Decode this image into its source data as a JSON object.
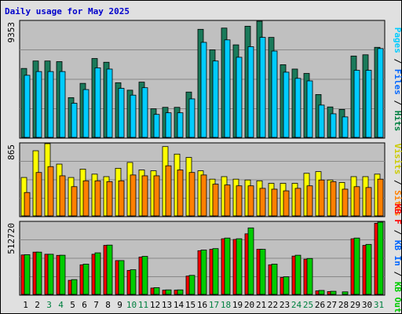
{
  "chart_data": {
    "title": "Daily usage for May 2025",
    "days": [
      "1",
      "2",
      "3",
      "4",
      "5",
      "6",
      "7",
      "8",
      "9",
      "10",
      "11",
      "12",
      "13",
      "14",
      "15",
      "16",
      "17",
      "18",
      "19",
      "20",
      "21",
      "22",
      "23",
      "24",
      "25",
      "26",
      "27",
      "28",
      "29",
      "30",
      "31"
    ],
    "weekend_days": [
      "3",
      "4",
      "10",
      "11",
      "17",
      "18",
      "24",
      "25",
      "31"
    ],
    "colors": {
      "background": "#e0e0e0",
      "plot_background": "#c0c0c0",
      "gridline": "#888888",
      "pages": "#00ccff",
      "files": "#0066ff",
      "hits": "#008040",
      "visits": "#ffff00",
      "sites": "#ff8000",
      "kb_in": "#00cc00",
      "kb_out": "#ff0000",
      "kb_f": "#ff0000",
      "weekday_label": "#000000",
      "weekend_label": "#008040",
      "title": "#0000cc"
    },
    "panels": [
      {
        "type": "bar",
        "max_label": "9353",
        "ylim": [
          0,
          9353
        ],
        "grid": true,
        "legend": [
          {
            "text": "Pages",
            "color": "#00ccff"
          },
          {
            "text": " / ",
            "color": "#000000"
          },
          {
            "text": "Files",
            "color": "#0066ff"
          },
          {
            "text": " / ",
            "color": "#000000"
          },
          {
            "text": "Hits",
            "color": "#008040"
          }
        ],
        "series": [
          {
            "key": "hits",
            "color": "#1a7a5a",
            "values": [
              5550,
              6150,
              6150,
              6100,
              3200,
              4350,
              6350,
              6050,
              4400,
              3800,
              4450,
              2300,
              2420,
              2420,
              3650,
              8700,
              7050,
              8800,
              7450,
              8950,
              9353,
              8050,
              5850,
              5500,
              5150,
              3450,
              2450,
              2250,
              6550,
              6650,
              7250
            ]
          },
          {
            "key": "pages",
            "color": "#00ccff",
            "values": [
              5000,
              5300,
              5300,
              5300,
              2750,
              3850,
              5600,
              5500,
              3950,
              3400,
              4000,
              1850,
              1980,
              1980,
              3100,
              7650,
              6150,
              7850,
              6450,
              7300,
              8050,
              6950,
              5250,
              4750,
              4550,
              2600,
              1900,
              1650,
              5400,
              5400,
              7150
            ]
          }
        ]
      },
      {
        "type": "bar",
        "max_label": "865",
        "ylim": [
          0,
          865
        ],
        "grid": true,
        "legend": [
          {
            "text": "Visits",
            "color": "#cccc00"
          },
          {
            "text": " / ",
            "color": "#000000"
          },
          {
            "text": "Sites",
            "color": "#ff8000"
          }
        ],
        "series": [
          {
            "key": "visits",
            "color": "#ffff00",
            "values": [
              460,
              780,
              865,
              620,
              460,
              560,
              500,
              470,
              570,
              640,
              550,
              540,
              830,
              740,
              700,
              540,
              440,
              470,
              440,
              430,
              420,
              390,
              390,
              390,
              510,
              530,
              430,
              400,
              470,
              470,
              500
            ]
          },
          {
            "key": "sites",
            "color": "#ff8000",
            "values": [
              280,
              520,
              590,
              480,
              350,
              420,
              420,
              410,
              420,
              490,
              480,
              480,
              600,
              550,
              520,
              490,
              380,
              370,
              360,
              360,
              330,
              320,
              300,
              330,
              360,
              430,
              410,
              320,
              350,
              340,
              440
            ]
          }
        ]
      },
      {
        "type": "bar",
        "max_label": "512720",
        "ylim": [
          0,
          512720
        ],
        "grid": true,
        "legend": [
          {
            "text": "KB F",
            "color": "#ff0000"
          },
          {
            "text": " / ",
            "color": "#000000"
          },
          {
            "text": "KB In",
            "color": "#0066ff"
          },
          {
            "text": " / ",
            "color": "#000000"
          },
          {
            "text": "KB Out",
            "color": "#00cc00"
          }
        ],
        "series": [
          {
            "key": "kb_out",
            "color": "#ff0000",
            "values": [
              280000,
              300000,
              285000,
              277000,
              100000,
              210000,
              285000,
              348000,
              240000,
              170000,
              265000,
              45000,
              30000,
              30000,
              130000,
              310000,
              320000,
              395000,
              390000,
              430000,
              320000,
              210000,
              120000,
              272000,
              250000,
              25000,
              20000,
              0,
              395000,
              348000,
              505000
            ]
          },
          {
            "key": "kb_in",
            "color": "#00cc00",
            "values": [
              282000,
              300000,
              285000,
              278000,
              105000,
              215000,
              295000,
              350000,
              240000,
              175000,
              270000,
              48000,
              32000,
              32000,
              135000,
              315000,
              325000,
              400000,
              395000,
              472000,
              320000,
              215000,
              125000,
              278000,
              255000,
              28000,
              22000,
              18000,
              400000,
              355000,
              512720
            ]
          }
        ]
      }
    ]
  }
}
